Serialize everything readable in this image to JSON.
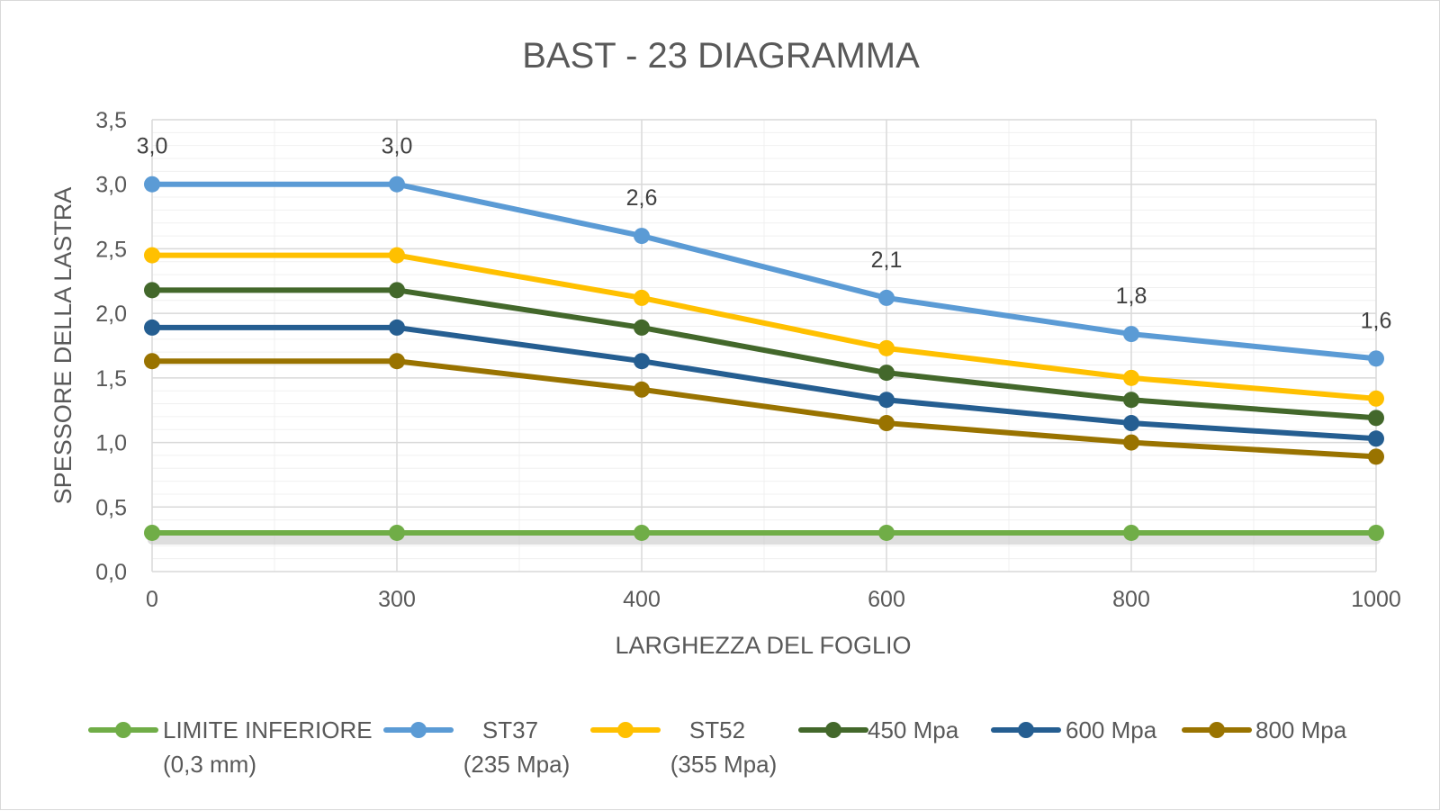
{
  "chart_data": {
    "type": "line",
    "title": "BAST - 23 DIAGRAMMA",
    "xlabel": "LARGHEZZA DEL FOGLIO",
    "ylabel": "SPESSORE DELLA LASTRA",
    "categories": [
      "0",
      "300",
      "400",
      "600",
      "800",
      "1000"
    ],
    "ylim": [
      0,
      3.5
    ],
    "ystep": 0.5,
    "ytick_labels": [
      "0,0",
      "0,5",
      "1,0",
      "1,5",
      "2,0",
      "2,5",
      "3,0",
      "3,5"
    ],
    "grid": true,
    "legend_position": "bottom",
    "series": [
      {
        "name": "LIMITE INFERIORE",
        "name2": "(0,3 mm)",
        "color": "#70ad47",
        "values": [
          0.3,
          0.3,
          0.3,
          0.3,
          0.3,
          0.3
        ]
      },
      {
        "name": "ST37",
        "name2": "(235 Mpa)",
        "color": "#5b9bd5",
        "values": [
          3.0,
          3.0,
          2.6,
          2.12,
          1.84,
          1.65
        ],
        "data_labels": [
          "3,0",
          "3,0",
          "2,6",
          "2,1",
          "1,8",
          "1,6"
        ]
      },
      {
        "name": "ST52",
        "name2": "(355 Mpa)",
        "color": "#ffc000",
        "values": [
          2.45,
          2.45,
          2.12,
          1.73,
          1.5,
          1.34
        ]
      },
      {
        "name": "450  Mpa",
        "name2": "",
        "color": "#43682b",
        "values": [
          2.18,
          2.18,
          1.89,
          1.54,
          1.33,
          1.19
        ]
      },
      {
        "name": "600 Mpa",
        "name2": "",
        "color": "#255e91",
        "values": [
          1.89,
          1.89,
          1.63,
          1.33,
          1.15,
          1.03
        ]
      },
      {
        "name": "800 Mpa",
        "name2": "",
        "color": "#997300",
        "values": [
          1.63,
          1.63,
          1.41,
          1.15,
          1.0,
          0.89
        ]
      }
    ]
  }
}
